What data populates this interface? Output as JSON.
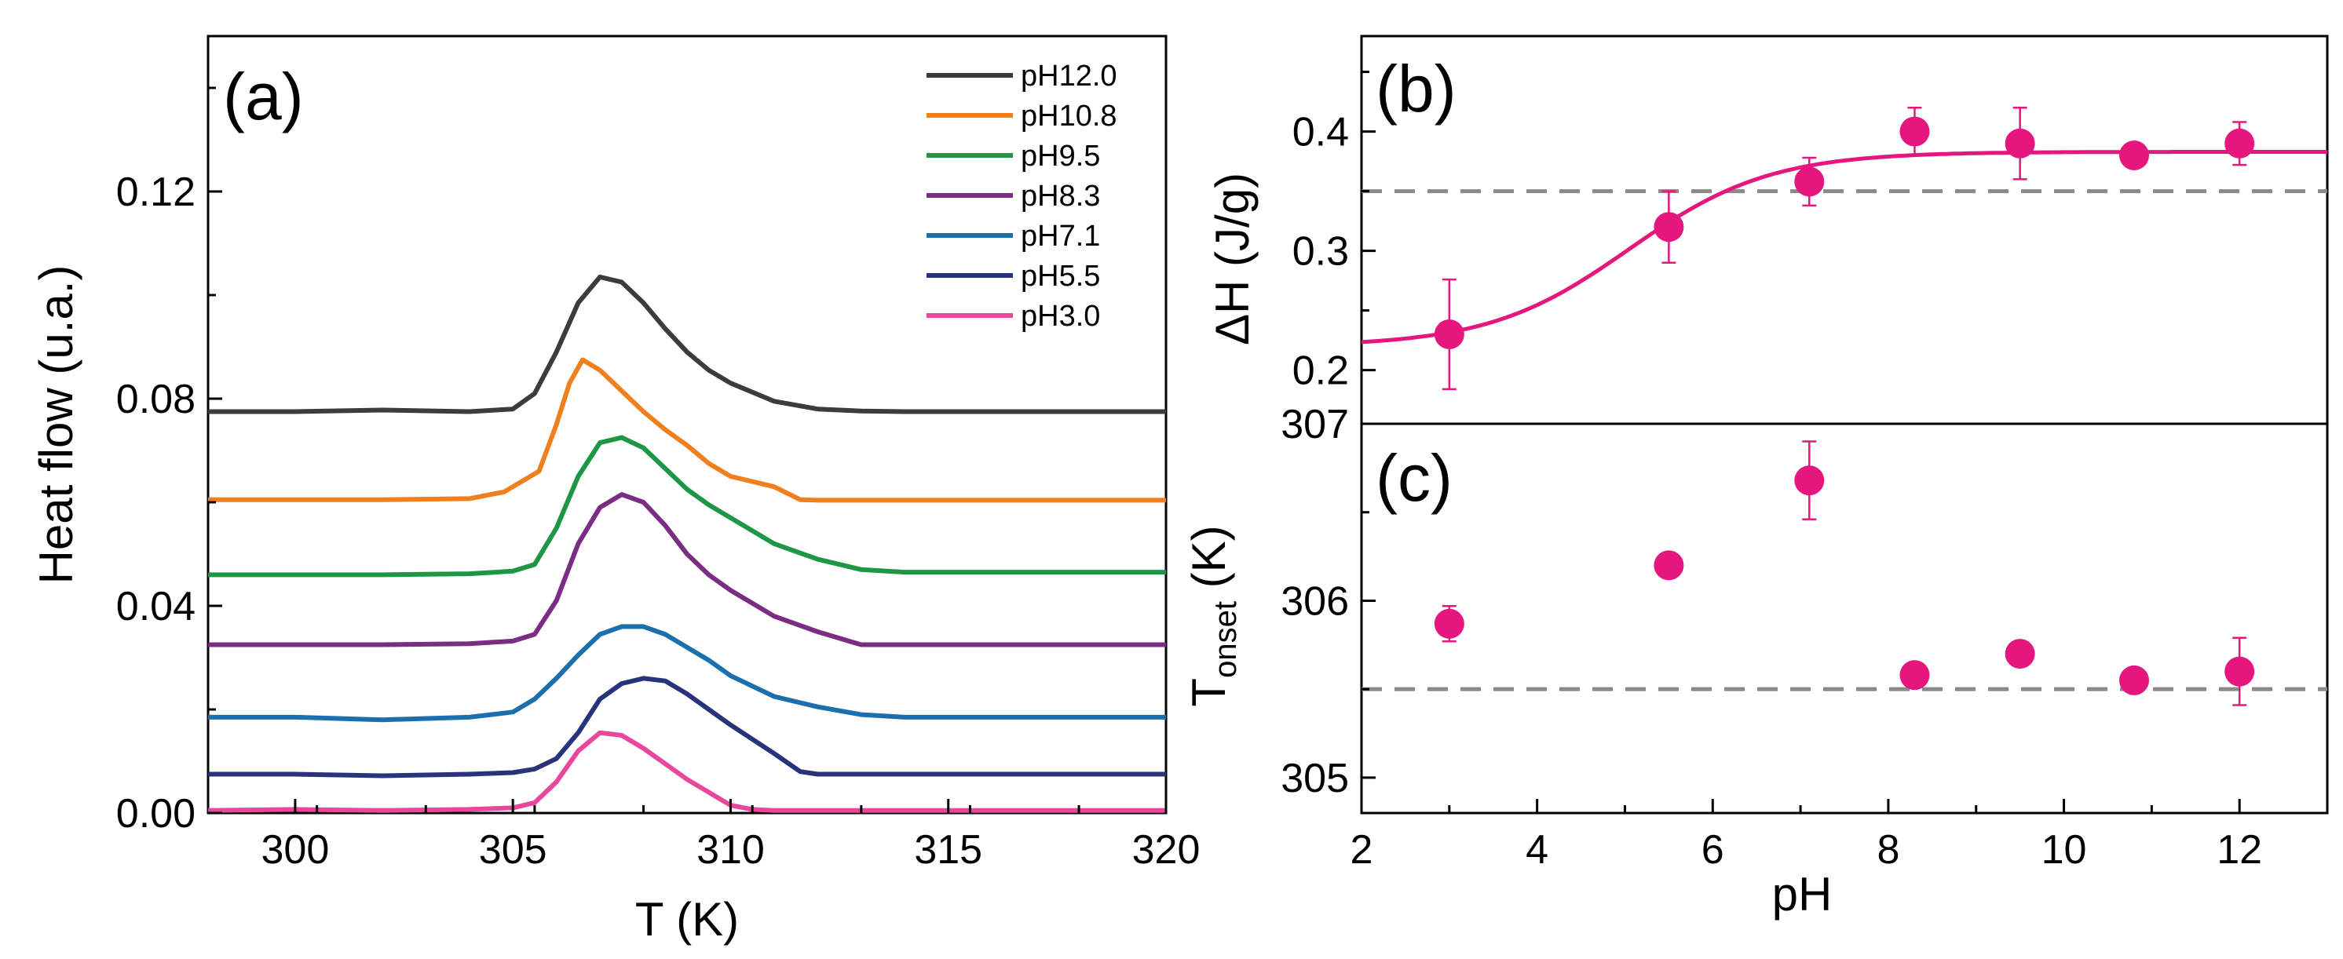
{
  "chart_data": [
    {
      "id": "a",
      "type": "line",
      "panel_label": "(a)",
      "xlabel": "T (K)",
      "ylabel": "Heat flow (u.a.)",
      "xlim": [
        298,
        320
      ],
      "ylim": [
        0,
        0.15
      ],
      "xticks": [
        300,
        305,
        310,
        315,
        320
      ],
      "xtick_labels": [
        "300",
        "305",
        "310",
        "315",
        "320"
      ],
      "yticks": [
        0,
        0.04,
        0.08,
        0.12
      ],
      "ytick_labels": [
        "0.00",
        "0.04",
        "0.08",
        "0.12"
      ],
      "legend_position": "top-right",
      "series": [
        {
          "name": "pH12.0",
          "color": "#3c3c3c",
          "baseline": 0.0775,
          "x": [
            298,
            300,
            302,
            304,
            305,
            305.5,
            306,
            306.5,
            307,
            307.5,
            308,
            308.5,
            309,
            309.5,
            310,
            311,
            312,
            313,
            314,
            316,
            318,
            320
          ],
          "y": [
            0.0775,
            0.0775,
            0.0778,
            0.0775,
            0.078,
            0.081,
            0.089,
            0.0985,
            0.1035,
            0.1025,
            0.0985,
            0.0935,
            0.089,
            0.0855,
            0.083,
            0.0795,
            0.078,
            0.0776,
            0.0775,
            0.0775,
            0.0775,
            0.0775
          ]
        },
        {
          "name": "pH10.8",
          "color": "#f07f1e",
          "baseline": 0.0605,
          "x": [
            298,
            302,
            304,
            304.8,
            305.2,
            305.6,
            306,
            306.3,
            306.6,
            307,
            307.5,
            308,
            308.5,
            309,
            309.5,
            310,
            311,
            311.6,
            312,
            314,
            316,
            318,
            320
          ],
          "y": [
            0.0605,
            0.0605,
            0.0607,
            0.062,
            0.064,
            0.066,
            0.075,
            0.083,
            0.0875,
            0.0855,
            0.0815,
            0.0775,
            0.074,
            0.071,
            0.0675,
            0.065,
            0.063,
            0.0605,
            0.0604,
            0.0604,
            0.0604,
            0.0604,
            0.0604
          ]
        },
        {
          "name": "pH9.5",
          "color": "#1d9645",
          "baseline": 0.046,
          "x": [
            298,
            302,
            304,
            305,
            305.5,
            306,
            306.5,
            307,
            307.5,
            308,
            308.5,
            309,
            309.5,
            310,
            311,
            312,
            313,
            314,
            316,
            318,
            320
          ],
          "y": [
            0.046,
            0.046,
            0.0462,
            0.0467,
            0.048,
            0.055,
            0.065,
            0.0715,
            0.0725,
            0.0705,
            0.0665,
            0.0625,
            0.0595,
            0.057,
            0.052,
            0.049,
            0.047,
            0.0465,
            0.0465,
            0.0465,
            0.0465
          ]
        },
        {
          "name": "pH8.3",
          "color": "#7b2c83",
          "baseline": 0.0325,
          "x": [
            298,
            302,
            304,
            305,
            305.5,
            306,
            306.5,
            307,
            307.5,
            308,
            308.5,
            309,
            309.5,
            310,
            311,
            312,
            312.8,
            313,
            314,
            316,
            318,
            320
          ],
          "y": [
            0.0325,
            0.0325,
            0.0327,
            0.0332,
            0.0345,
            0.041,
            0.052,
            0.059,
            0.0615,
            0.06,
            0.0555,
            0.05,
            0.046,
            0.043,
            0.038,
            0.035,
            0.033,
            0.0325,
            0.0325,
            0.0325,
            0.0325,
            0.0325
          ]
        },
        {
          "name": "pH7.1",
          "color": "#1b6fad",
          "baseline": 0.0185,
          "x": [
            298,
            300,
            302,
            304,
            305,
            305.5,
            306,
            306.5,
            307,
            307.5,
            308,
            308.5,
            309,
            309.5,
            310,
            311,
            312,
            313,
            314,
            316,
            318,
            320
          ],
          "y": [
            0.0185,
            0.0185,
            0.018,
            0.0185,
            0.0195,
            0.022,
            0.026,
            0.0305,
            0.0345,
            0.036,
            0.036,
            0.0345,
            0.032,
            0.0295,
            0.0265,
            0.0225,
            0.0205,
            0.019,
            0.0185,
            0.0185,
            0.0185,
            0.0185
          ]
        },
        {
          "name": "pH5.5",
          "color": "#28337b",
          "baseline": 0.0075,
          "x": [
            298,
            300,
            302,
            304,
            305,
            305.5,
            306,
            306.5,
            307,
            307.5,
            308,
            308.5,
            309,
            309.5,
            310,
            311,
            311.6,
            312,
            314,
            316,
            318,
            320
          ],
          "y": [
            0.0075,
            0.0075,
            0.0072,
            0.0075,
            0.0078,
            0.0085,
            0.0105,
            0.0155,
            0.022,
            0.025,
            0.026,
            0.0255,
            0.023,
            0.02,
            0.017,
            0.0115,
            0.008,
            0.0075,
            0.0075,
            0.0075,
            0.0075,
            0.0075
          ]
        },
        {
          "name": "pH3.0",
          "color": "#e8479b",
          "baseline": 0.0005,
          "x": [
            298,
            300,
            302,
            304,
            305,
            305.5,
            306,
            306.5,
            307,
            307.5,
            308,
            308.5,
            309,
            309.5,
            310,
            310.5,
            311,
            312,
            314,
            316,
            318,
            320
          ],
          "y": [
            0.0005,
            0.0007,
            0.0005,
            0.0007,
            0.001,
            0.002,
            0.006,
            0.012,
            0.0155,
            0.015,
            0.0125,
            0.0095,
            0.0065,
            0.004,
            0.0015,
            0.0007,
            0.0005,
            0.0005,
            0.0005,
            0.0005,
            0.0005,
            0.0005
          ]
        }
      ]
    },
    {
      "id": "b",
      "type": "scatter",
      "panel_label": "(b)",
      "ylabel": "ΔH (J/g)",
      "xlim": [
        2,
        13
      ],
      "ylim": [
        0.155,
        0.48
      ],
      "yticks": [
        0.2,
        0.3,
        0.4
      ],
      "ytick_labels": [
        "0.2",
        "0.3",
        "0.4"
      ],
      "reference_line": 0.35,
      "color": "#e5177f",
      "points": [
        {
          "x": 3.0,
          "y": 0.23,
          "err": 0.046
        },
        {
          "x": 5.5,
          "y": 0.32,
          "err": 0.03
        },
        {
          "x": 7.1,
          "y": 0.358,
          "err": 0.02
        },
        {
          "x": 8.3,
          "y": 0.4,
          "err": 0.02
        },
        {
          "x": 9.5,
          "y": 0.39,
          "err": 0.03
        },
        {
          "x": 10.8,
          "y": 0.38,
          "err": 0.008
        },
        {
          "x": 12.0,
          "y": 0.39,
          "err": 0.018
        }
      ],
      "fit": {
        "type": "sigmoid",
        "bottom": 0.22,
        "top": 0.383,
        "center": 5.05,
        "width": 0.8
      }
    },
    {
      "id": "c",
      "type": "scatter",
      "panel_label": "(c)",
      "xlabel": "pH",
      "ylabel_main": "T",
      "ylabel_sub": "onset",
      "ylabel_unit": " (K)",
      "xlim": [
        2,
        13
      ],
      "ylim": [
        304.8,
        307
      ],
      "xticks": [
        2,
        4,
        6,
        8,
        10,
        12
      ],
      "xtick_labels": [
        "2",
        "4",
        "6",
        "8",
        "10",
        "12"
      ],
      "yticks": [
        305,
        306,
        307
      ],
      "ytick_labels": [
        "305",
        "306",
        "307"
      ],
      "reference_line": 305.5,
      "color": "#e5177f",
      "points": [
        {
          "x": 3.0,
          "y": 305.87,
          "err": 0.1
        },
        {
          "x": 5.5,
          "y": 306.2,
          "err": 0.07
        },
        {
          "x": 7.1,
          "y": 306.68,
          "err": 0.22
        },
        {
          "x": 8.3,
          "y": 305.58,
          "err": 0.03
        },
        {
          "x": 9.5,
          "y": 305.7,
          "err": 0.04
        },
        {
          "x": 10.8,
          "y": 305.55,
          "err": 0.06
        },
        {
          "x": 12.0,
          "y": 305.6,
          "err": 0.19
        }
      ]
    }
  ]
}
